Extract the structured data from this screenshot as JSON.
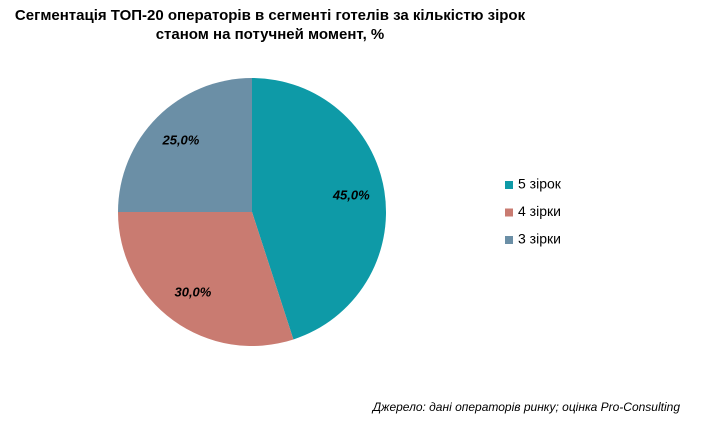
{
  "chart_data": {
    "type": "pie",
    "title": "Сегментація ТОП-20 операторів в сегменті готелів за кількістю зірок станом на потучней момент, %",
    "categories": [
      "5 зірок",
      "4 зірки",
      "3 зірки"
    ],
    "values": [
      45,
      30,
      25
    ],
    "value_labels": [
      "45,0%",
      "30,0%",
      "25,0%"
    ],
    "colors": [
      "#0e9aa7",
      "#c97b71",
      "#6b8fa6"
    ],
    "legend": "right",
    "source": "Джерело: дані операторів ринку; оцінка Pro-Consulting"
  }
}
